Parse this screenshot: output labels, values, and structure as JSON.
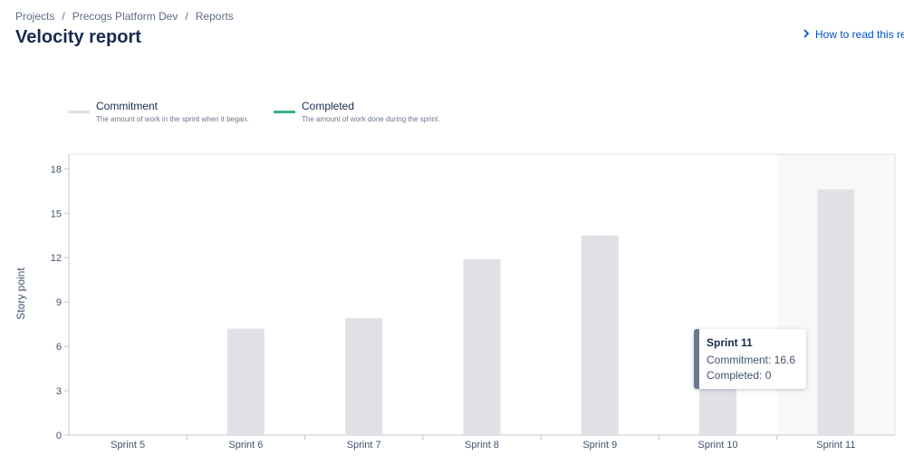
{
  "breadcrumb": {
    "items": [
      "Projects",
      "Precogs Platform Dev",
      "Reports"
    ],
    "separator": "/"
  },
  "page_title": "Velocity report",
  "help_link": {
    "label": "How to read this re",
    "icon": "chevron-right-icon"
  },
  "legend": [
    {
      "title": "Commitment",
      "description": "The amount of work in the sprint when it began.",
      "color": "#dfe1e6"
    },
    {
      "title": "Completed",
      "description": "The amount of work done during the sprint.",
      "color": "#36b37e"
    }
  ],
  "tooltip": {
    "title": "Sprint 11",
    "commitment": "Commitment: 16.6",
    "completed": "Completed: 0"
  },
  "chart_data": {
    "type": "bar",
    "categories": [
      "Sprint 5",
      "Sprint 6",
      "Sprint 7",
      "Sprint 8",
      "Sprint 9",
      "Sprint 10",
      "Sprint 11"
    ],
    "series": [
      {
        "name": "Commitment",
        "values": [
          0,
          7.2,
          7.9,
          11.9,
          13.5,
          6,
          16.6
        ],
        "color": "#dfe1e6"
      },
      {
        "name": "Completed",
        "values": [
          0,
          0,
          0,
          0,
          0,
          0,
          0
        ],
        "color": "#36b37e"
      }
    ],
    "ylabel": "Story point",
    "yticks": [
      0,
      3,
      6,
      9,
      12,
      15,
      18
    ],
    "ylim": [
      0,
      19
    ],
    "highlighted_category": "Sprint 11",
    "grid": false
  }
}
